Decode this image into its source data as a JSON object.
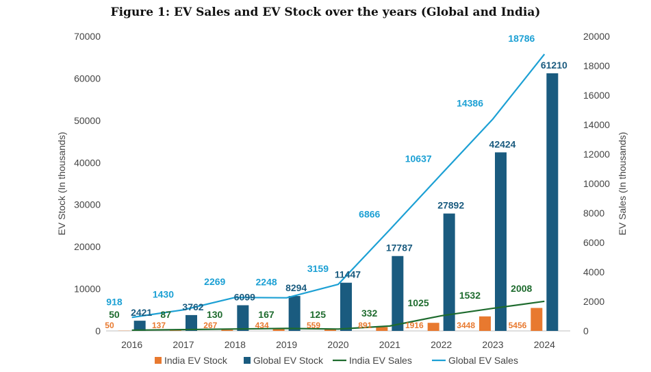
{
  "chart_data": {
    "type": "bar",
    "title": "Figure 1: EV Sales and EV Stock over the years (Global and India)",
    "categories": [
      "2016",
      "2017",
      "2018",
      "2019",
      "2020",
      "2021",
      "2022",
      "2023",
      "2024"
    ],
    "ylabel": "EV Stock (In thousands)",
    "y2label": "EV Sales (In thousands)",
    "ylim": [
      0,
      70000
    ],
    "y2lim": [
      0,
      20000
    ],
    "yticks": [
      "0",
      "10000",
      "20000",
      "30000",
      "40000",
      "50000",
      "60000",
      "70000"
    ],
    "y2ticks": [
      "0",
      "2000",
      "4000",
      "6000",
      "8000",
      "10000",
      "12000",
      "14000",
      "16000",
      "18000",
      "20000"
    ],
    "legend_position": "bottom",
    "series": [
      {
        "name": "India EV Stock",
        "kind": "bar",
        "axis": "left",
        "color": "#E8792F",
        "values": [
          50,
          137,
          267,
          434,
          559,
          891,
          1916,
          3448,
          5456
        ]
      },
      {
        "name": "Global EV Stock",
        "kind": "bar",
        "axis": "left",
        "color": "#1A5B7F",
        "values": [
          2421,
          3762,
          6099,
          8294,
          11447,
          17787,
          27892,
          42424,
          61210
        ]
      },
      {
        "name": "India EV Sales",
        "kind": "line",
        "axis": "right",
        "color": "#1E6B2E",
        "values": [
          50,
          87,
          130,
          167,
          125,
          332,
          1025,
          1532,
          2008
        ]
      },
      {
        "name": "Global EV Sales",
        "kind": "line",
        "axis": "right",
        "color": "#1CA0D4",
        "values": [
          918,
          1430,
          2269,
          2248,
          3159,
          6866,
          10637,
          14386,
          18786
        ]
      }
    ]
  }
}
